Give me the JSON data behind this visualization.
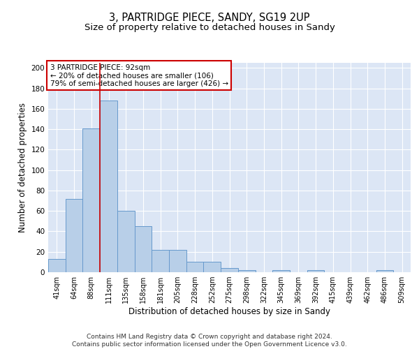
{
  "title1": "3, PARTRIDGE PIECE, SANDY, SG19 2UP",
  "title2": "Size of property relative to detached houses in Sandy",
  "xlabel": "Distribution of detached houses by size in Sandy",
  "ylabel": "Number of detached properties",
  "bar_labels": [
    "41sqm",
    "64sqm",
    "88sqm",
    "111sqm",
    "135sqm",
    "158sqm",
    "181sqm",
    "205sqm",
    "228sqm",
    "252sqm",
    "275sqm",
    "298sqm",
    "322sqm",
    "345sqm",
    "369sqm",
    "392sqm",
    "415sqm",
    "439sqm",
    "462sqm",
    "486sqm",
    "509sqm"
  ],
  "bar_values": [
    13,
    72,
    141,
    168,
    60,
    45,
    22,
    22,
    10,
    10,
    4,
    2,
    0,
    2,
    0,
    2,
    0,
    0,
    0,
    2,
    0
  ],
  "bar_color": "#b8cfe8",
  "bar_edge_color": "#6699cc",
  "background_color": "#dce6f5",
  "grid_color": "#ffffff",
  "annotation_box_text": "3 PARTRIDGE PIECE: 92sqm\n← 20% of detached houses are smaller (106)\n79% of semi-detached houses are larger (426) →",
  "annotation_box_color": "#ffffff",
  "annotation_box_edge_color": "#cc0000",
  "red_line_x": 2.5,
  "ylim": [
    0,
    205
  ],
  "yticks": [
    0,
    20,
    40,
    60,
    80,
    100,
    120,
    140,
    160,
    180,
    200
  ],
  "footnote": "Contains HM Land Registry data © Crown copyright and database right 2024.\nContains public sector information licensed under the Open Government Licence v3.0.",
  "title1_fontsize": 10.5,
  "title2_fontsize": 9.5,
  "xlabel_fontsize": 8.5,
  "ylabel_fontsize": 8.5,
  "tick_fontsize": 7,
  "footnote_fontsize": 6.5,
  "annot_fontsize": 7.5
}
